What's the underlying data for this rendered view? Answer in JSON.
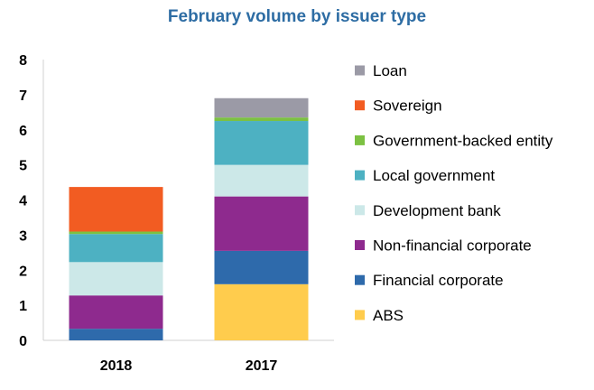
{
  "chart_data": {
    "type": "bar",
    "stacked": true,
    "title": "February volume by issuer type",
    "categories": [
      "2018",
      "2017"
    ],
    "ylim": [
      0,
      8
    ],
    "yticks": [
      0,
      1,
      2,
      3,
      4,
      5,
      6,
      7,
      8
    ],
    "grid": false,
    "legend_position": "right",
    "series": [
      {
        "name": "ABS",
        "color": "#ffcc4d",
        "values": [
          0.0,
          1.6
        ]
      },
      {
        "name": "Financial corporate",
        "color": "#2e6aab",
        "values": [
          0.33,
          0.95
        ]
      },
      {
        "name": "Non-financial corporate",
        "color": "#8e2a8e",
        "values": [
          0.95,
          1.55
        ]
      },
      {
        "name": "Development bank",
        "color": "#cce8e8",
        "values": [
          0.95,
          0.9
        ]
      },
      {
        "name": "Local government",
        "color": "#4db1c2",
        "values": [
          0.8,
          1.25
        ]
      },
      {
        "name": "Government-backed entity",
        "color": "#7cc142",
        "values": [
          0.07,
          0.1
        ]
      },
      {
        "name": "Sovereign",
        "color": "#f25c22",
        "values": [
          1.27,
          0.0
        ]
      },
      {
        "name": "Loan",
        "color": "#9b9aa6",
        "values": [
          0.0,
          0.55
        ]
      }
    ]
  }
}
